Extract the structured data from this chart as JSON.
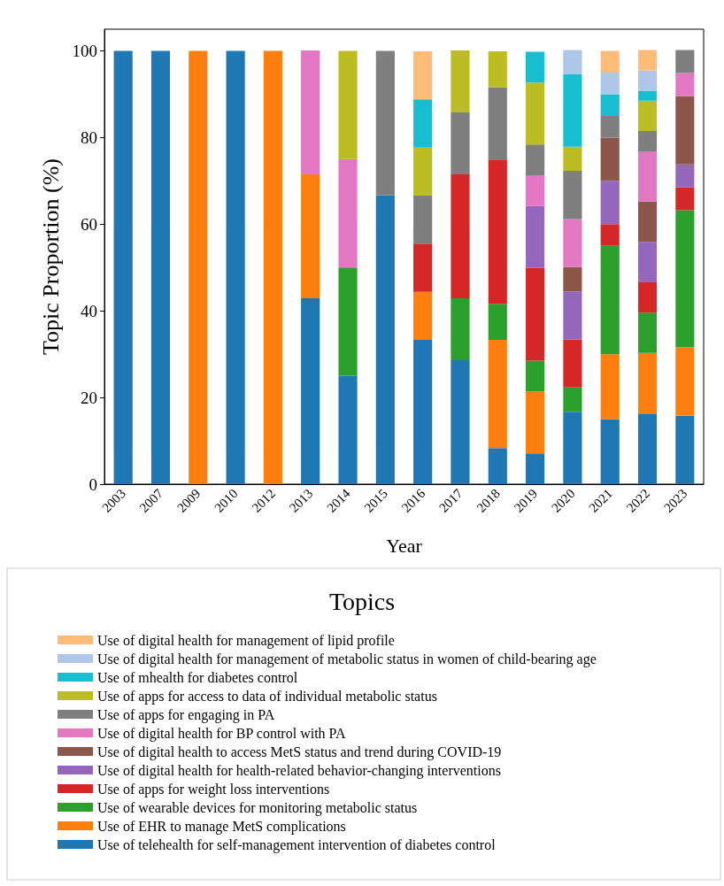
{
  "chart_data": {
    "type": "bar",
    "stacked": true,
    "xlabel": "Year",
    "ylabel": "Topic Proportion (%)",
    "legend_title": "Topics",
    "legend": "bottom",
    "grid": false,
    "categories": [
      "2003",
      "2007",
      "2009",
      "2010",
      "2012",
      "2013",
      "2014",
      "2015",
      "2016",
      "2017",
      "2018",
      "2019",
      "2020",
      "2021",
      "2022",
      "2023"
    ],
    "ylim": [
      0,
      105
    ],
    "yticks": [
      0,
      20,
      40,
      60,
      80,
      100
    ],
    "series": [
      {
        "name": "Use of telehealth for self-management intervention of diabetes control",
        "color": "#1f77b4",
        "values": [
          100,
          100,
          null,
          100,
          null,
          42.9,
          25,
          66.7,
          33.3,
          28.6,
          8.3,
          7.1,
          16.7,
          15,
          16.3,
          15.8
        ]
      },
      {
        "name": "Use of EHR to manage MetS complications",
        "color": "#ff7f0e",
        "values": [
          null,
          null,
          100,
          null,
          100,
          28.6,
          null,
          null,
          11.1,
          null,
          25,
          14.3,
          null,
          15,
          14,
          15.8
        ]
      },
      {
        "name": "Use of wearable devices for monitoring metabolic status",
        "color": "#2ca02c",
        "values": [
          null,
          null,
          null,
          null,
          null,
          null,
          25,
          null,
          null,
          14.3,
          8.3,
          7.1,
          5.6,
          25,
          9.3,
          31.6
        ]
      },
      {
        "name": "Use of apps for weight loss interventions",
        "color": "#d62728",
        "values": [
          null,
          null,
          null,
          null,
          null,
          null,
          null,
          null,
          11.1,
          28.6,
          33.3,
          21.4,
          11.1,
          5,
          7,
          5.3
        ]
      },
      {
        "name": "Use of digital health for health-related behavior-changing interventions",
        "color": "#9467bd",
        "values": [
          null,
          null,
          null,
          null,
          null,
          null,
          null,
          null,
          null,
          null,
          null,
          14.3,
          11.1,
          10,
          9.3,
          5.3
        ]
      },
      {
        "name": "Use of digital health to access MetS status and trend during COVID-19",
        "color": "#8c564b",
        "values": [
          null,
          null,
          null,
          null,
          null,
          null,
          null,
          null,
          null,
          null,
          null,
          null,
          5.6,
          10,
          9.3,
          15.8
        ]
      },
      {
        "name": "Use of digital health for BP control with PA",
        "color": "#e377c2",
        "values": [
          null,
          null,
          null,
          null,
          null,
          28.6,
          25,
          null,
          null,
          null,
          null,
          7.1,
          11.1,
          null,
          11.6,
          5.3
        ]
      },
      {
        "name": "Use of apps for engaging in PA",
        "color": "#7f7f7f",
        "values": [
          null,
          null,
          null,
          null,
          null,
          null,
          null,
          33.3,
          11.1,
          14.3,
          16.7,
          7.1,
          11.1,
          5,
          4.7,
          5.3
        ]
      },
      {
        "name": "Use of apps for access to data of individual metabolic status",
        "color": "#bcbd22",
        "values": [
          null,
          null,
          null,
          null,
          null,
          null,
          25,
          null,
          11.1,
          14.3,
          8.3,
          14.3,
          5.6,
          null,
          7,
          null
        ]
      },
      {
        "name": "Use of mhealth for diabetes control",
        "color": "#17becf",
        "values": [
          null,
          null,
          null,
          null,
          null,
          null,
          null,
          null,
          11.1,
          null,
          null,
          7.1,
          16.7,
          5,
          2.3,
          null
        ]
      },
      {
        "name": "Use of digital health for management of metabolic status in women of child-bearing age",
        "color": "#aec7e8",
        "values": [
          null,
          null,
          null,
          null,
          null,
          null,
          null,
          null,
          null,
          null,
          null,
          null,
          5.6,
          5,
          4.7,
          null
        ]
      },
      {
        "name": "Use of digital health for management of lipid profile",
        "color": "#ffbb78",
        "values": [
          null,
          null,
          null,
          null,
          null,
          null,
          null,
          null,
          11.1,
          null,
          null,
          null,
          null,
          5,
          4.7,
          null
        ]
      }
    ]
  }
}
